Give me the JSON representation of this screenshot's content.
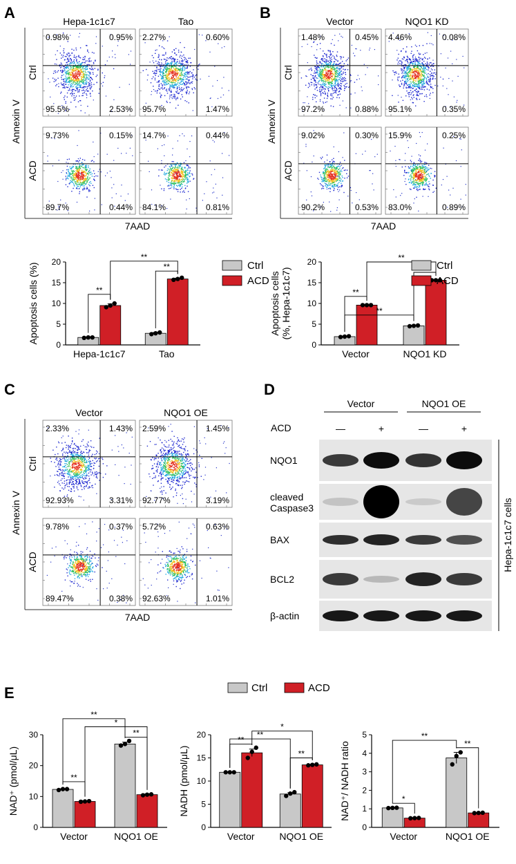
{
  "colors": {
    "ctrl": "#c8c8c8",
    "acd": "#d01f26"
  },
  "panel_labels": {
    "A": "A",
    "B": "B",
    "C": "C",
    "D": "D",
    "E": "E"
  },
  "legend": {
    "ctrl": "Ctrl",
    "acd": "ACD"
  },
  "flow": {
    "A": {
      "cols": [
        "Hepa-1c1c7",
        "Tao"
      ],
      "rows": [
        "Ctrl",
        "ACD"
      ],
      "ylabel": "Annexin V",
      "xlabel": "7AAD",
      "quads": [
        [
          [
            "0.98%",
            "0.95%",
            "95.5%",
            "2.53%"
          ],
          [
            "2.27%",
            "0.60%",
            "95.7%",
            "1.47%"
          ]
        ],
        [
          [
            "9.73%",
            "0.15%",
            "89.7%",
            "0.44%"
          ],
          [
            "14.7%",
            "0.44%",
            "84.1%",
            "0.81%"
          ]
        ]
      ]
    },
    "B": {
      "cols": [
        "Vector",
        "NQO1 KD"
      ],
      "rows": [
        "Ctrl",
        "ACD"
      ],
      "ylabel": "Annexin V",
      "xlabel": "7AAD",
      "quads": [
        [
          [
            "1.48%",
            "0.45%",
            "97.2%",
            "0.88%"
          ],
          [
            "4.46%",
            "0.08%",
            "95.1%",
            "0.35%"
          ]
        ],
        [
          [
            "9.02%",
            "0.30%",
            "90.2%",
            "0.53%"
          ],
          [
            "15.9%",
            "0.25%",
            "83.0%",
            "0.89%"
          ]
        ]
      ]
    },
    "C": {
      "cols": [
        "Vector",
        "NQO1 OE"
      ],
      "rows": [
        "Ctrl",
        "ACD"
      ],
      "ylabel": "Annexin V",
      "xlabel": "7AAD",
      "quads": [
        [
          [
            "2.33%",
            "1.43%",
            "92.93%",
            "3.31%"
          ],
          [
            "2.59%",
            "1.45%",
            "92.77%",
            "3.19%"
          ]
        ],
        [
          [
            "9.78%",
            "0.37%",
            "89.47%",
            "0.38%"
          ],
          [
            "5.72%",
            "0.63%",
            "92.63%",
            "1.01%"
          ]
        ]
      ]
    }
  },
  "western": {
    "groups": [
      "Vector",
      "NQO1 OE"
    ],
    "acd_label": "ACD",
    "lanes": [
      "—",
      "+",
      "—",
      "+"
    ],
    "bands": [
      "NQO1",
      "cleaved\nCaspase3",
      "BAX",
      "BCL2",
      "β-actin"
    ],
    "side": "Hepa-1c1c7 cells"
  },
  "chart_data": [
    {
      "id": "A",
      "type": "bar",
      "categories": [
        "Hepa-1c1c7",
        "Tao"
      ],
      "ylabel": "Apoptosis cells (%)",
      "ylim": [
        0,
        20
      ],
      "yticks": [
        0,
        5,
        10,
        15,
        20
      ],
      "series": [
        {
          "name": "Ctrl",
          "values": [
            1.8,
            2.8
          ],
          "err": [
            0.1,
            0.2
          ],
          "points": [
            [
              1.7,
              1.8,
              1.8
            ],
            [
              2.6,
              2.8,
              3.0
            ]
          ]
        },
        {
          "name": "ACD",
          "values": [
            9.5,
            15.9
          ],
          "err": [
            0.4,
            0.2
          ],
          "points": [
            [
              9.1,
              9.5,
              10.0
            ],
            [
              15.7,
              15.9,
              16.2
            ]
          ]
        }
      ],
      "sig": [
        {
          "a": [
            0,
            0
          ],
          "b": [
            0,
            1
          ],
          "text": "**",
          "y": 12.2
        },
        {
          "a": [
            1,
            0
          ],
          "b": [
            1,
            1
          ],
          "text": "**",
          "y": 17.8
        },
        {
          "a": [
            0,
            1
          ],
          "b": [
            1,
            1
          ],
          "text": "**",
          "y": 20.2
        }
      ]
    },
    {
      "id": "B",
      "type": "bar",
      "categories": [
        "Vector",
        "NQO1 KD"
      ],
      "ylabel": "Apoptosis cells",
      "ylabel2": "(%, Hepa-1c1c7)",
      "ylim": [
        0,
        20
      ],
      "yticks": [
        0,
        5,
        10,
        15,
        20
      ],
      "series": [
        {
          "name": "Ctrl",
          "values": [
            2.0,
            4.6
          ],
          "err": [
            0.15,
            0.15
          ],
          "points": [
            [
              1.9,
              2.0,
              2.1
            ],
            [
              4.5,
              4.6,
              4.7
            ]
          ]
        },
        {
          "name": "ACD",
          "values": [
            9.6,
            15.6
          ],
          "err": [
            0.05,
            0.05
          ],
          "points": [
            [
              9.6,
              9.6,
              9.6
            ],
            [
              15.6,
              15.6,
              15.6
            ]
          ]
        }
      ],
      "sig": [
        {
          "a": [
            0,
            0
          ],
          "b": [
            0,
            1
          ],
          "text": "**",
          "y": 11.7
        },
        {
          "a": [
            0,
            0
          ],
          "b": [
            1,
            0
          ],
          "text": "**",
          "y": 7.2
        },
        {
          "a": [
            1,
            0
          ],
          "b": [
            1,
            1
          ],
          "text": "**",
          "y": 17.5
        },
        {
          "a": [
            0,
            1
          ],
          "b": [
            1,
            1
          ],
          "text": "**",
          "y": 20.0
        }
      ]
    },
    {
      "id": "E1",
      "type": "bar",
      "categories": [
        "Vector",
        "NQO1 OE"
      ],
      "ylabel": "NAD⁺ (pmol/μL)",
      "ylim": [
        0,
        30
      ],
      "yticks": [
        0,
        10,
        20,
        30
      ],
      "series": [
        {
          "name": "Ctrl",
          "values": [
            12.3,
            27.0
          ],
          "err": [
            0.2,
            0.6
          ],
          "points": [
            [
              12.1,
              12.4,
              12.4
            ],
            [
              26.5,
              27.0,
              28.0
            ]
          ]
        },
        {
          "name": "ACD",
          "values": [
            8.4,
            10.6
          ],
          "err": [
            0.2,
            0.2
          ],
          "points": [
            [
              8.3,
              8.4,
              8.5
            ],
            [
              10.4,
              10.6,
              10.7
            ]
          ]
        }
      ],
      "sig": [
        {
          "a": [
            0,
            0
          ],
          "b": [
            0,
            1
          ],
          "text": "**",
          "y": 14.8
        },
        {
          "a": [
            1,
            0
          ],
          "b": [
            1,
            1
          ],
          "text": "**",
          "y": 29.2
        },
        {
          "a": [
            0,
            1
          ],
          "b": [
            1,
            1
          ],
          "text": "*",
          "y": 32.6
        },
        {
          "a": [
            0,
            0
          ],
          "b": [
            1,
            0
          ],
          "text": "**",
          "y": 35.2
        }
      ]
    },
    {
      "id": "E2",
      "type": "bar",
      "categories": [
        "Vector",
        "NQO1 OE"
      ],
      "ylabel": "NADH  (pmol/μL)",
      "ylim": [
        0,
        20
      ],
      "yticks": [
        0,
        5,
        10,
        15,
        20
      ],
      "series": [
        {
          "name": "Ctrl",
          "values": [
            11.9,
            7.2
          ],
          "err": [
            0.05,
            0.3
          ],
          "points": [
            [
              11.9,
              11.9,
              11.9
            ],
            [
              6.8,
              7.3,
              7.6
            ]
          ]
        },
        {
          "name": "ACD",
          "values": [
            16.1,
            13.5
          ],
          "err": [
            0.8,
            0.1
          ],
          "points": [
            [
              15.0,
              16.3,
              17.2
            ],
            [
              13.4,
              13.5,
              13.6
            ]
          ]
        }
      ],
      "sig": [
        {
          "a": [
            0,
            0
          ],
          "b": [
            0,
            1
          ],
          "text": "**",
          "y": 18.0
        },
        {
          "a": [
            1,
            0
          ],
          "b": [
            1,
            1
          ],
          "text": "**",
          "y": 15.0
        },
        {
          "a": [
            0,
            0
          ],
          "b": [
            1,
            0
          ],
          "text": "**",
          "y": 19.1
        },
        {
          "a": [
            0,
            1
          ],
          "b": [
            1,
            1
          ],
          "text": "*",
          "y": 20.8
        }
      ]
    },
    {
      "id": "E3",
      "type": "bar",
      "categories": [
        "Vector",
        "NQO1 OE"
      ],
      "ylabel": "NAD⁺/ NADH ratio",
      "ylim": [
        0,
        5
      ],
      "yticks": [
        0,
        1,
        2,
        3,
        4,
        5
      ],
      "series": [
        {
          "name": "Ctrl",
          "values": [
            1.05,
            3.75
          ],
          "err": [
            0.02,
            0.3
          ],
          "points": [
            [
              1.04,
              1.05,
              1.06
            ],
            [
              3.4,
              3.85,
              4.05
            ]
          ]
        },
        {
          "name": "ACD",
          "values": [
            0.5,
            0.78
          ],
          "err": [
            0.02,
            0.02
          ],
          "points": [
            [
              0.49,
              0.5,
              0.51
            ],
            [
              0.77,
              0.78,
              0.79
            ]
          ]
        }
      ],
      "sig": [
        {
          "a": [
            0,
            0
          ],
          "b": [
            0,
            1
          ],
          "text": "*",
          "y": 1.3
        },
        {
          "a": [
            1,
            0
          ],
          "b": [
            1,
            1
          ],
          "text": "**",
          "y": 4.3
        },
        {
          "a": [
            0,
            0
          ],
          "b": [
            1,
            0
          ],
          "text": "**",
          "y": 4.7
        }
      ]
    }
  ]
}
